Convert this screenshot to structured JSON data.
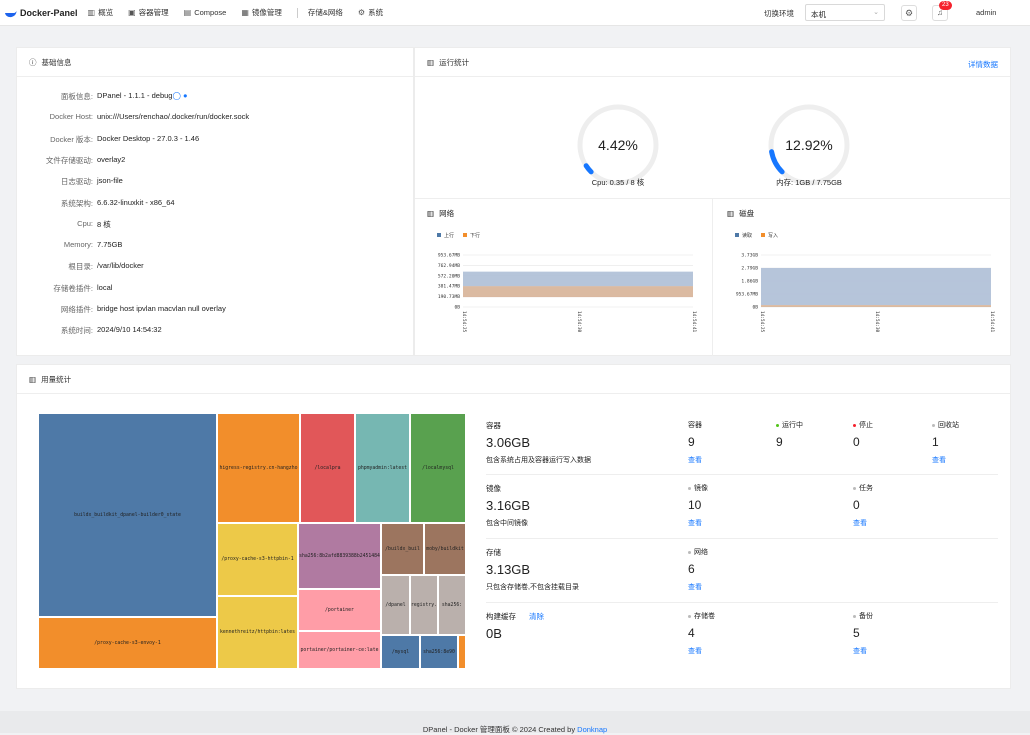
{
  "app": {
    "title": "Docker-Panel"
  },
  "nav": {
    "items": [
      {
        "icon": "chart-icon",
        "glyph": "▥",
        "label": "概览"
      },
      {
        "icon": "container-icon",
        "glyph": "▣",
        "label": "容器管理"
      },
      {
        "icon": "compose-icon",
        "glyph": "▤",
        "label": "Compose"
      },
      {
        "icon": "image-icon",
        "glyph": "▦",
        "label": "镜像管理"
      },
      {
        "icon": "",
        "glyph": "",
        "label": "存储&网络"
      },
      {
        "icon": "gear-icon",
        "glyph": "⚙",
        "label": "系统"
      }
    ]
  },
  "header": {
    "env_label": "切换环境",
    "env_value": "本机",
    "notifications": "23",
    "user": "admin"
  },
  "info": {
    "title": "基础信息",
    "rows": [
      {
        "k": "面板信息:",
        "v": "DPanel - 1.1.1 - debug"
      },
      {
        "k": "Docker Host:",
        "v": "unix:///Users/renchao/.docker/run/docker.sock"
      },
      {
        "k": "Docker 版本:",
        "v": "Docker Desktop - 27.0.3 - 1.46"
      },
      {
        "k": "文件存储驱动:",
        "v": "overlay2"
      },
      {
        "k": "日志驱动:",
        "v": "json-file"
      },
      {
        "k": "系统架构:",
        "v": "6.6.32-linuxkit - x86_64"
      },
      {
        "k": "Cpu:",
        "v": "8 核"
      },
      {
        "k": "Memory:",
        "v": "7.75GB"
      },
      {
        "k": "根目录:",
        "v": "/var/lib/docker"
      },
      {
        "k": "存储卷插件:",
        "v": "local"
      },
      {
        "k": "网络插件:",
        "v": "bridge  host  ipvlan  macvlan  null  overlay"
      },
      {
        "k": "系统时间:",
        "v": "2024/9/10 14:54:32"
      }
    ]
  },
  "runtime": {
    "title": "运行统计",
    "detail_link": "详情数据",
    "cpu": {
      "percent_text": "4.42%",
      "fraction": 0.0442,
      "label": "Cpu: 0.35 / 8 核"
    },
    "mem": {
      "percent_text": "12.92%",
      "fraction": 0.1292,
      "label": "内存: 1GB / 7.75GB"
    },
    "colors": {
      "accent": "#1677ff",
      "track": "#eeeeee"
    }
  },
  "network": {
    "title": "网络",
    "legend": [
      {
        "name": "上行",
        "color": "#4e79a7"
      },
      {
        "name": "下行",
        "color": "#f28e2b"
      }
    ],
    "yticks": [
      "953.67MB",
      "762.94MB",
      "572.20MB",
      "381.47MB",
      "190.73MB",
      "0B"
    ],
    "xticks": [
      "14:54:25",
      "14:54:30",
      "14:54:41"
    ]
  },
  "disk": {
    "title": "磁盘",
    "legend": [
      {
        "name": "读取",
        "color": "#4e79a7"
      },
      {
        "name": "写入",
        "color": "#f28e2b"
      }
    ],
    "yticks": [
      "3.73GB",
      "2.79GB",
      "1.86GB",
      "953.67MB",
      "0B"
    ],
    "xticks": [
      "14:54:25",
      "14:54:30",
      "14:54:41"
    ]
  },
  "usage": {
    "title": "用量统计",
    "treemap": [
      {
        "label": "buildx_buildkit_dpanel-builder0_state",
        "color": "#4e79a7"
      },
      {
        "label": "/proxy-cache-s3-envoy-1",
        "color": "#f28e2b"
      },
      {
        "label": "higress-registry.cn-hangzho",
        "color": "#f28e2b"
      },
      {
        "label": "/localpra",
        "color": "#e15759"
      },
      {
        "label": "phpmyadmin:latest",
        "color": "#76b7b2"
      },
      {
        "label": "/localmysql",
        "color": "#59a14f"
      },
      {
        "label": "/proxy-cache-s3-httpbin-1",
        "color": "#edc948"
      },
      {
        "label": "kennethreitz/httpbin:lates",
        "color": "#edc948"
      },
      {
        "label": "sha256:8b2afd8839388b2451484",
        "color": "#b07aa1"
      },
      {
        "label": "/portainer",
        "color": "#ff9da7"
      },
      {
        "label": "portainer/portainer-ce:late",
        "color": "#ff9da7"
      },
      {
        "label": "/buildx_buil",
        "color": "#9c755f"
      },
      {
        "label": "moby/buildkit",
        "color": "#9c755f"
      },
      {
        "label": "/dpanel",
        "color": "#bab0ac"
      },
      {
        "label": "registry.",
        "color": "#bab0ac"
      },
      {
        "label": "sha256:",
        "color": "#bab0ac"
      },
      {
        "label": "/mysql",
        "color": "#4e79a7"
      },
      {
        "label": "sha256:8e90",
        "color": "#4e79a7"
      },
      {
        "label": "",
        "color": "#f28e2b"
      }
    ],
    "stats": [
      {
        "name": "容器",
        "size": "3.06GB",
        "desc": "包含系统占用及容器运行写入数据",
        "cols": [
          {
            "label": "容器",
            "dot": "",
            "value": "9",
            "link": "查看"
          },
          {
            "label": "运行中",
            "dot": "#52c41a",
            "value": "9",
            "link": ""
          },
          {
            "label": "停止",
            "dot": "#f5222d",
            "value": "0",
            "link": ""
          },
          {
            "label": "回收站",
            "dot": "#bbbbbb",
            "value": "1",
            "link": "查看"
          }
        ]
      },
      {
        "name": "镜像",
        "size": "3.16GB",
        "desc": "包含中间镜像",
        "cols": [
          {
            "label": "镜像",
            "dot": "#bbbbbb",
            "value": "10",
            "link": "查看"
          },
          {
            "label": "任务",
            "dot": "#bbbbbb",
            "value": "0",
            "link": "查看"
          }
        ]
      },
      {
        "name": "存储",
        "size": "3.13GB",
        "desc": "只包含存储卷,不包含挂载目录",
        "cols": [
          {
            "label": "网络",
            "dot": "#bbbbbb",
            "value": "6",
            "link": "查看"
          }
        ]
      },
      {
        "name": "构建缓存",
        "size": "0B",
        "desc": "",
        "clear": "清除",
        "cols": [
          {
            "label": "存储卷",
            "dot": "#bbbbbb",
            "value": "4",
            "link": "查看"
          },
          {
            "label": "备份",
            "dot": "#bbbbbb",
            "value": "5",
            "link": "查看"
          }
        ]
      }
    ]
  },
  "footer": {
    "text": "DPanel - Docker 管理面板 © 2024 Created by ",
    "author": "Donknap"
  }
}
